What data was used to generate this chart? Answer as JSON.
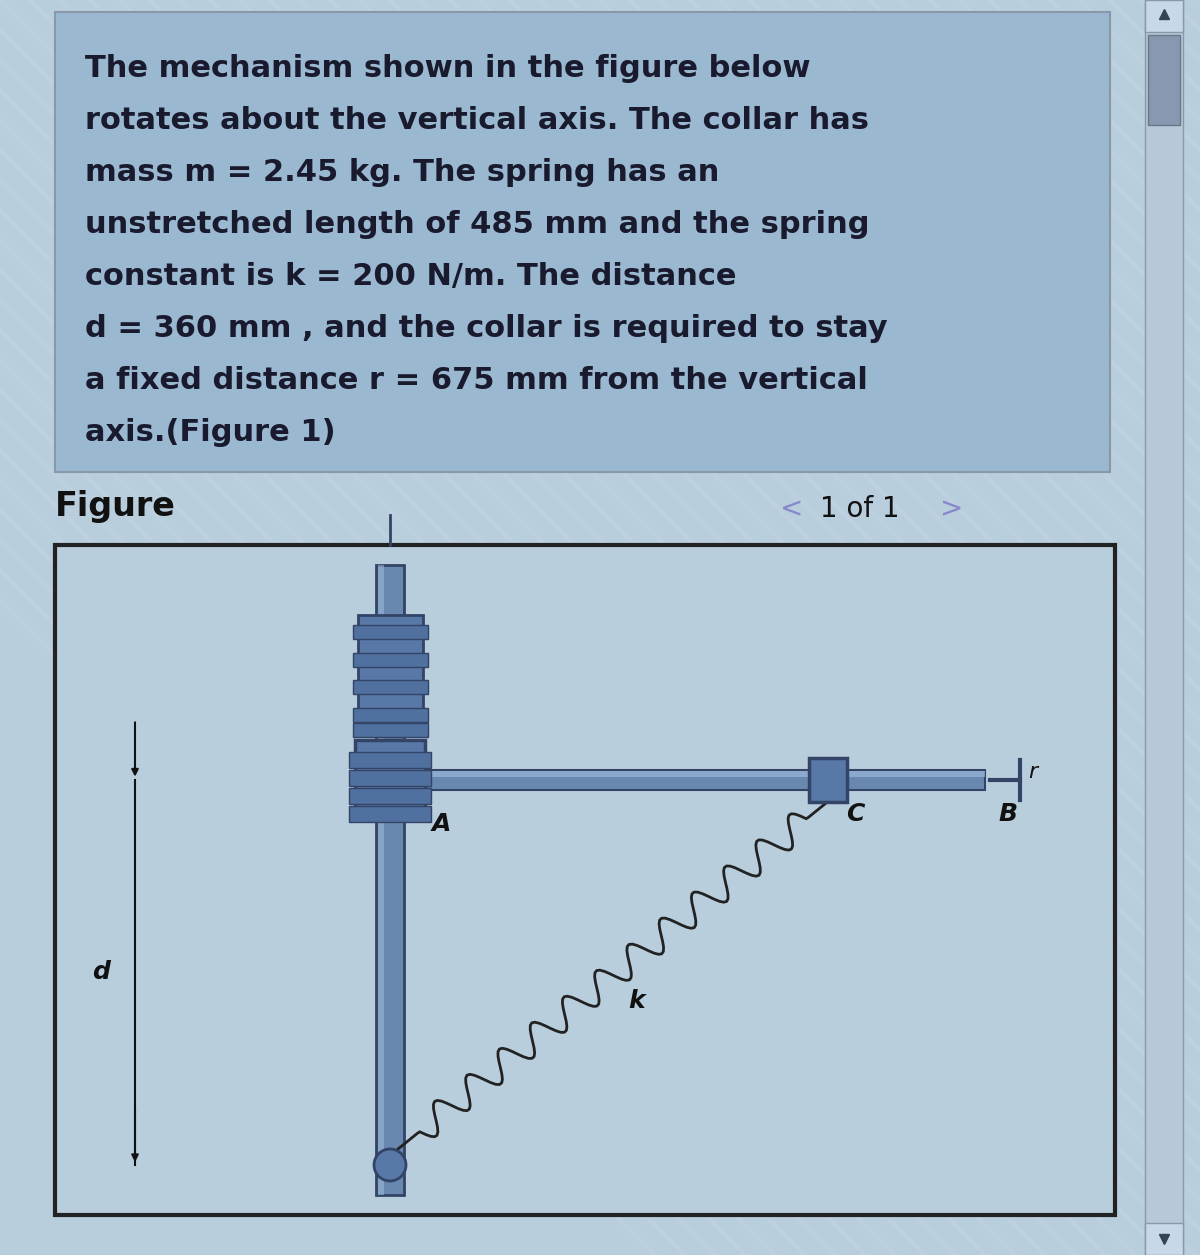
{
  "bg_color": "#b8cedd",
  "text_block_bg": "#9ab8d0",
  "text_lines": [
    "The mechanism shown in the figure below",
    "rotates about the vertical axis. The collar has",
    "mass m = 2.45 kg. The spring has an",
    "unstretched length of 485 mm and the spring",
    "constant is k = 200 N/m. The distance",
    "d = 360 mm , and the collar is required to stay",
    "a fixed distance r = 675 mm from the vertical",
    "axis.(Figure 1)"
  ],
  "text_fontsize": 22,
  "text_color": "#1a1a2e",
  "figure_label": "Figure",
  "figure_fontsize": 24,
  "page_label": "1 of 1",
  "diag_bg": "#b8cedd",
  "diag_border": "#222222",
  "pole_color": "#6888b0",
  "pole_dark": "#334466",
  "rod_color": "#6888b0",
  "hub_color": "#5878a8",
  "spring_color": "#222222",
  "label_color": "#111111",
  "label_fs": 18,
  "scrollbar_bg": "#8898b0",
  "scrollbar_track": "#b0c0d0"
}
